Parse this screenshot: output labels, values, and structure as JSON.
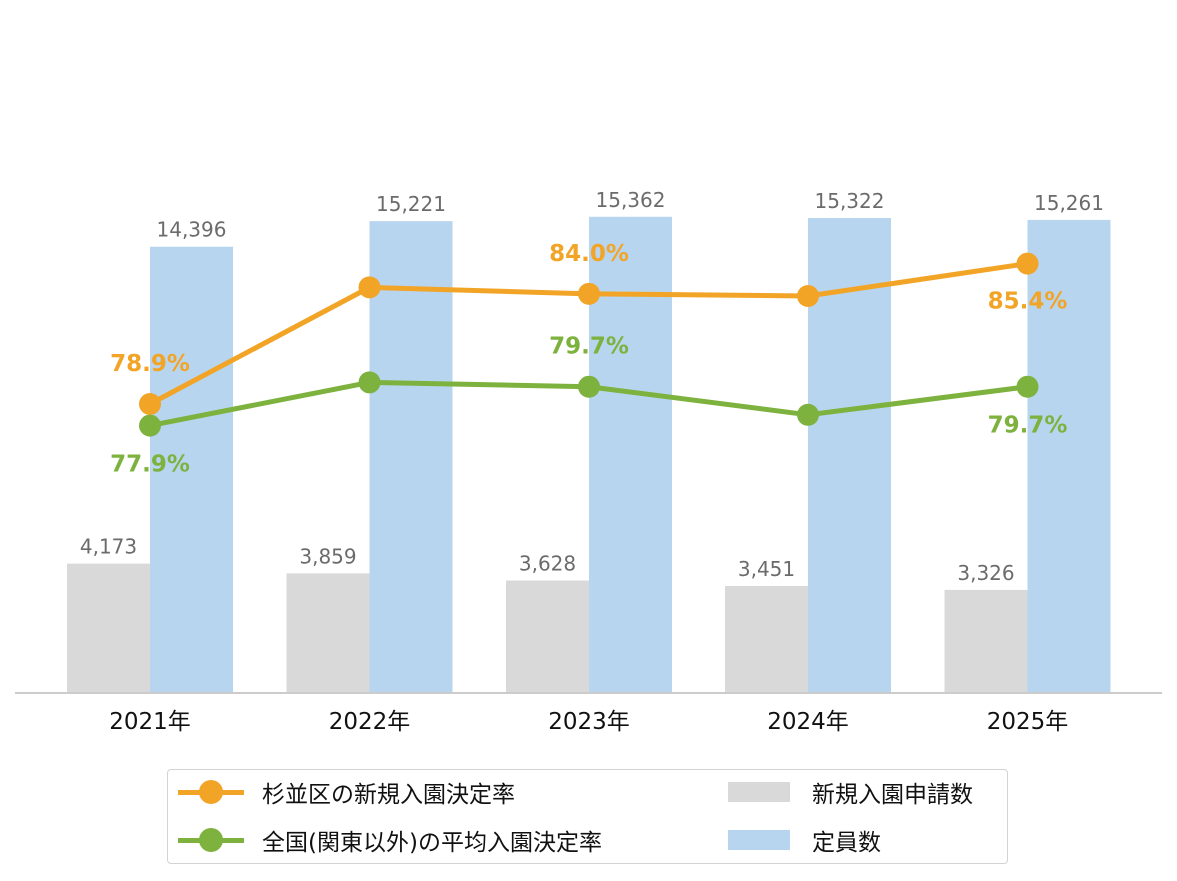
{
  "chart_data": {
    "type": "bar",
    "categories": [
      "2021年",
      "2022年",
      "2023年",
      "2024年",
      "2025年"
    ],
    "bar_series": [
      {
        "name": "新規入園申請数",
        "color": "#d9d9d9",
        "values": [
          4173,
          3859,
          3628,
          3451,
          3326
        ],
        "labels": [
          "4,173",
          "3,859",
          "3,628",
          "3,451",
          "3,326"
        ]
      },
      {
        "name": "定員数",
        "color": "#b8d5ef",
        "values": [
          14396,
          15221,
          15362,
          15322,
          15261
        ],
        "labels": [
          "14,396",
          "15,221",
          "15,362",
          "15,322",
          "15,261"
        ]
      }
    ],
    "bar_ylim": [
      0,
      16000
    ],
    "line_series": [
      {
        "name": "杉並区の新規入園決定率",
        "color": "#f2a427",
        "values": [
          78.9,
          84.3,
          84.0,
          83.9,
          85.4
        ],
        "labels": [
          "78.9%",
          "",
          "84.0%",
          "",
          "85.4%"
        ]
      },
      {
        "name": "全国(関東以外)の平均入園決定率",
        "color": "#7db23e",
        "values": [
          77.9,
          79.9,
          79.7,
          78.4,
          79.7
        ],
        "labels": [
          "77.9%",
          "",
          "79.7%",
          "",
          "79.7%"
        ]
      }
    ],
    "line_ylim": [
      60,
      90
    ],
    "legend": {
      "placement": "bottom",
      "columns": [
        [
          "杉並区の新規入園決定率",
          "全国(関東以外)の平均入園決定率"
        ],
        [
          "新規入園申請数",
          "定員数"
        ]
      ]
    },
    "grid": false,
    "title": "",
    "xlabel": "",
    "ylabel": ""
  }
}
